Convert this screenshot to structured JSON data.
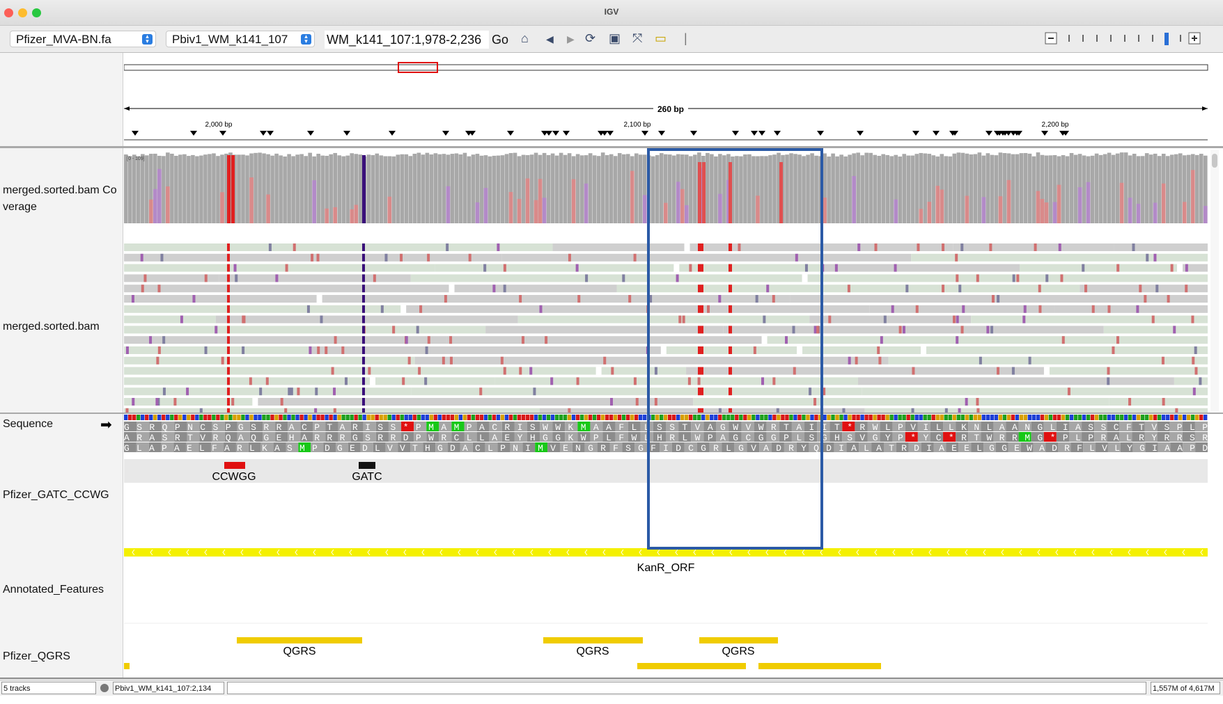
{
  "app": {
    "title": "IGV"
  },
  "toolbar": {
    "genome": "Pfizer_MVA-BN.fa",
    "chromosome": "Pbiv1_WM_k141_107",
    "locus": "WM_k141_107:1,978-2,236",
    "go_label": "Go"
  },
  "ruler": {
    "span_label": "260 bp",
    "ticks": [
      "2,000 bp",
      "2,100 bp",
      "2,200 bp"
    ]
  },
  "coverage": {
    "range_label": "[0 - 109]"
  },
  "tracks": {
    "coverage_name": "merged.sorted.bam Coverage",
    "alignment_name": "merged.sorted.bam",
    "sequence_name": "Sequence",
    "motif_name": "Pfizer_GATC_CCWG",
    "annotated_name": "Annotated_Features",
    "qgrs_name": "Pfizer_QGRS"
  },
  "sequence": {
    "frames": [
      "GSRQPNCSPGSRRACPTARISS*PMAMPACRISWWKMAAFLLSSTVAGWVWRTAIIT*RWLPVILLKNLAANGLIASSCFTVSPLP",
      "ARASRTVRQAQGEHARRRGSRRDPWRCLLAEYHGGKWPLFWLHRLWPAGCGGPLSGHSVGYP*YC*RTWRRMG*PLPRALRYRRSR",
      "GLAPAELFARLKASMPDGEDLVVTHGDACLPNIMVENGRFSGFIDCGRLGVADRYQDIALATRDIAEELGGEWADRFLVLYGIAAPD"
    ]
  },
  "motifs": {
    "items": [
      {
        "label": "CCWGG",
        "color": "#e01010"
      },
      {
        "label": "GATC",
        "color": "#111111"
      }
    ]
  },
  "annotated": {
    "feature_label": "KanR_ORF",
    "color": "#f4f000"
  },
  "qgrs": {
    "label": "QGRS",
    "color": "#f0cc00"
  },
  "status": {
    "tracks": "5 tracks",
    "position": "Pbiv1_WM_k141_107:2,134",
    "memory": "1,557M of 4,617M"
  },
  "colors": {
    "highlight": "#2b5aa6",
    "mismatch_red": "#e02020",
    "mismatch_purple": "#3a0f7a",
    "read_gray": "#cfcfcf",
    "read_green": "#d7e2d5"
  }
}
